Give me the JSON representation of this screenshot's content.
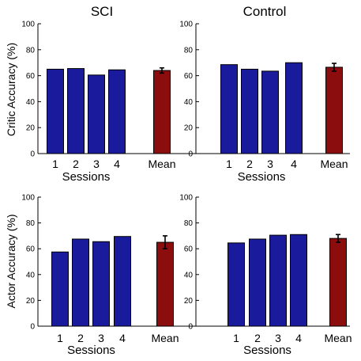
{
  "columns": [
    "SCI",
    "Control"
  ],
  "rows": [
    "Critic Accuracy (%)",
    "Actor Accuracy (%)"
  ],
  "colors": {
    "session_bar": "#1a1a9c",
    "mean_bar": "#8b0d0d",
    "axis": "#000000"
  },
  "chart_data": [
    {
      "type": "bar",
      "title": "SCI",
      "xlabel": "Sessions",
      "ylabel": "Critic Accuracy (%)",
      "categories": [
        "1",
        "2",
        "3",
        "4",
        "Mean"
      ],
      "values": [
        65,
        65.5,
        60.5,
        64.5,
        64
      ],
      "errors": [
        null,
        null,
        null,
        null,
        2
      ],
      "ylim": [
        0,
        100
      ],
      "yticks": [
        0,
        20,
        40,
        60,
        80,
        100
      ],
      "grid": false
    },
    {
      "type": "bar",
      "title": "Control",
      "xlabel": "Sessions",
      "ylabel": "",
      "categories": [
        "1",
        "2",
        "3",
        "4",
        "Mean"
      ],
      "values": [
        68.5,
        65,
        63.5,
        70,
        66.5
      ],
      "errors": [
        null,
        null,
        null,
        null,
        3
      ],
      "ylim": [
        0,
        100
      ],
      "yticks": [
        0,
        20,
        40,
        60,
        80,
        100
      ],
      "grid": false
    },
    {
      "type": "bar",
      "title": "",
      "xlabel": "Sessions",
      "ylabel": "Actor Accuracy (%)",
      "categories": [
        "1",
        "2",
        "3",
        "4",
        "Mean"
      ],
      "values": [
        57.5,
        67.5,
        65.5,
        69.5,
        65
      ],
      "errors": [
        null,
        null,
        null,
        null,
        5
      ],
      "ylim": [
        0,
        100
      ],
      "yticks": [
        0,
        20,
        40,
        60,
        80,
        100
      ],
      "grid": false
    },
    {
      "type": "bar",
      "title": "",
      "xlabel": "Sessions",
      "ylabel": "",
      "categories": [
        "1",
        "2",
        "3",
        "4",
        "Mean"
      ],
      "values": [
        64.5,
        67.5,
        70.5,
        71,
        68
      ],
      "errors": [
        null,
        null,
        null,
        null,
        3
      ],
      "ylim": [
        0,
        100
      ],
      "yticks": [
        0,
        20,
        40,
        60,
        80,
        100
      ],
      "grid": false
    }
  ]
}
